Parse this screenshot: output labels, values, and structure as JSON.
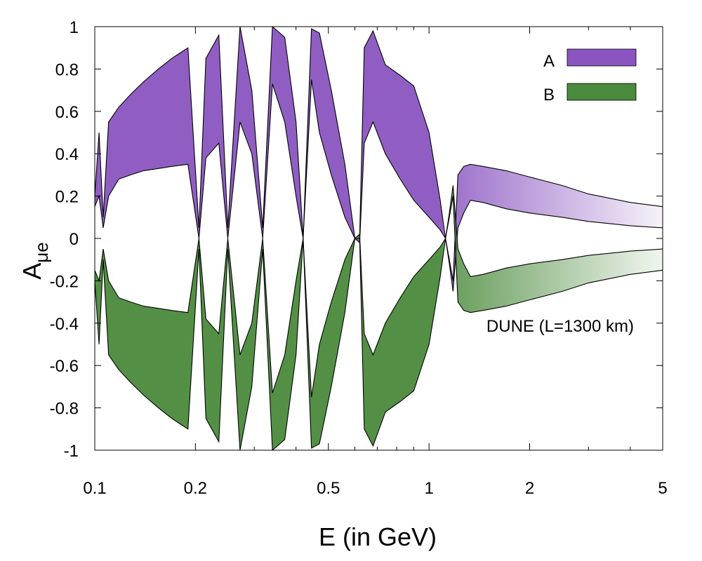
{
  "chart_data": {
    "type": "area",
    "x_scale": "log",
    "xlabel": "E (in GeV)",
    "ylabel_main": "A",
    "ylabel_sub": "μe",
    "xlim": [
      0.1,
      5
    ],
    "ylim": [
      -1,
      1
    ],
    "x_ticks": [
      {
        "value": 0.1,
        "label": "0.1"
      },
      {
        "value": 0.2,
        "label": "0.2"
      },
      {
        "value": 0.5,
        "label": "0.5"
      },
      {
        "value": 1,
        "label": "1"
      },
      {
        "value": 2,
        "label": "2"
      },
      {
        "value": 5,
        "label": "5"
      }
    ],
    "y_ticks": [
      {
        "value": 1,
        "label": "1"
      },
      {
        "value": 0.8,
        "label": "0.8"
      },
      {
        "value": 0.6,
        "label": "0.6"
      },
      {
        "value": 0.4,
        "label": "0.4"
      },
      {
        "value": 0.2,
        "label": "0.2"
      },
      {
        "value": 0,
        "label": "0"
      },
      {
        "value": -0.2,
        "label": "-0.2"
      },
      {
        "value": -0.4,
        "label": "-0.4"
      },
      {
        "value": -0.6,
        "label": "-0.6"
      },
      {
        "value": -0.8,
        "label": "-0.8"
      },
      {
        "value": -1,
        "label": "-1"
      }
    ],
    "annotation": "DUNE (L=1300 km)",
    "legend_position": "top-right",
    "series": [
      {
        "name": "A",
        "color": "#8a55c0",
        "description": "purple band, oscillating envelope (mostly positive)",
        "x": [
          0.1,
          0.103,
          0.106,
          0.11,
          0.118,
          0.128,
          0.14,
          0.155,
          0.17,
          0.19,
          0.205,
          0.215,
          0.235,
          0.25,
          0.272,
          0.295,
          0.318,
          0.34,
          0.37,
          0.4,
          0.42,
          0.445,
          0.47,
          0.51,
          0.56,
          0.6,
          0.62,
          0.64,
          0.68,
          0.74,
          0.82,
          0.9,
          1.0,
          1.08,
          1.12,
          1.15,
          1.18,
          1.22,
          1.27,
          1.33,
          1.45,
          1.7,
          2.0,
          2.5,
          3.0,
          4.0,
          5.0
        ],
        "upper": [
          0.2,
          0.5,
          0.1,
          0.55,
          0.62,
          0.68,
          0.74,
          0.8,
          0.85,
          0.9,
          0.05,
          0.85,
          0.96,
          0.05,
          1.0,
          0.7,
          0.05,
          1.0,
          0.95,
          0.55,
          0.0,
          0.99,
          0.97,
          0.7,
          0.35,
          0.0,
          0.0,
          0.9,
          0.98,
          0.82,
          0.77,
          0.72,
          0.5,
          0.18,
          0.0,
          -0.1,
          -0.2,
          0.3,
          0.34,
          0.35,
          0.34,
          0.32,
          0.29,
          0.25,
          0.21,
          0.17,
          0.15
        ],
        "lower": [
          0.15,
          0.2,
          0.05,
          0.2,
          0.28,
          0.3,
          0.32,
          0.33,
          0.34,
          0.35,
          0.0,
          0.38,
          0.45,
          0.0,
          0.55,
          0.4,
          0.0,
          0.73,
          0.55,
          0.2,
          0.0,
          0.75,
          0.5,
          0.3,
          0.1,
          0.0,
          -0.02,
          0.45,
          0.55,
          0.4,
          0.28,
          0.18,
          0.1,
          0.04,
          0.0,
          -0.12,
          -0.25,
          0.05,
          0.12,
          0.18,
          0.17,
          0.14,
          0.12,
          0.1,
          0.08,
          0.06,
          0.05
        ]
      },
      {
        "name": "B",
        "color": "#4a8a3c",
        "description": "green band, mirror of A (mostly negative)",
        "x": [
          0.1,
          0.103,
          0.106,
          0.11,
          0.118,
          0.128,
          0.14,
          0.155,
          0.17,
          0.19,
          0.205,
          0.215,
          0.235,
          0.25,
          0.272,
          0.295,
          0.318,
          0.34,
          0.37,
          0.4,
          0.42,
          0.445,
          0.47,
          0.51,
          0.56,
          0.6,
          0.62,
          0.64,
          0.68,
          0.74,
          0.82,
          0.9,
          1.0,
          1.08,
          1.12,
          1.15,
          1.18,
          1.22,
          1.27,
          1.33,
          1.45,
          1.7,
          2.0,
          2.5,
          3.0,
          4.0,
          5.0
        ],
        "upper": [
          -0.15,
          -0.2,
          -0.05,
          -0.2,
          -0.28,
          -0.3,
          -0.32,
          -0.33,
          -0.34,
          -0.35,
          0.0,
          -0.38,
          -0.45,
          0.0,
          -0.55,
          -0.4,
          0.0,
          -0.73,
          -0.55,
          -0.2,
          0.0,
          -0.75,
          -0.5,
          -0.3,
          -0.1,
          0.0,
          0.02,
          -0.45,
          -0.55,
          -0.4,
          -0.28,
          -0.18,
          -0.1,
          -0.04,
          0.0,
          0.12,
          0.25,
          -0.05,
          -0.12,
          -0.18,
          -0.17,
          -0.14,
          -0.12,
          -0.1,
          -0.08,
          -0.06,
          -0.05
        ],
        "lower": [
          -0.2,
          -0.5,
          -0.1,
          -0.55,
          -0.62,
          -0.68,
          -0.74,
          -0.8,
          -0.85,
          -0.9,
          -0.05,
          -0.85,
          -0.96,
          -0.05,
          -1.0,
          -0.7,
          -0.05,
          -1.0,
          -0.95,
          -0.55,
          0.0,
          -0.99,
          -0.97,
          -0.7,
          -0.35,
          0.0,
          0.0,
          -0.9,
          -0.98,
          -0.82,
          -0.77,
          -0.72,
          -0.5,
          -0.18,
          0.0,
          0.1,
          0.2,
          -0.3,
          -0.34,
          -0.35,
          -0.34,
          -0.32,
          -0.29,
          -0.25,
          -0.21,
          -0.17,
          -0.15
        ]
      }
    ]
  }
}
